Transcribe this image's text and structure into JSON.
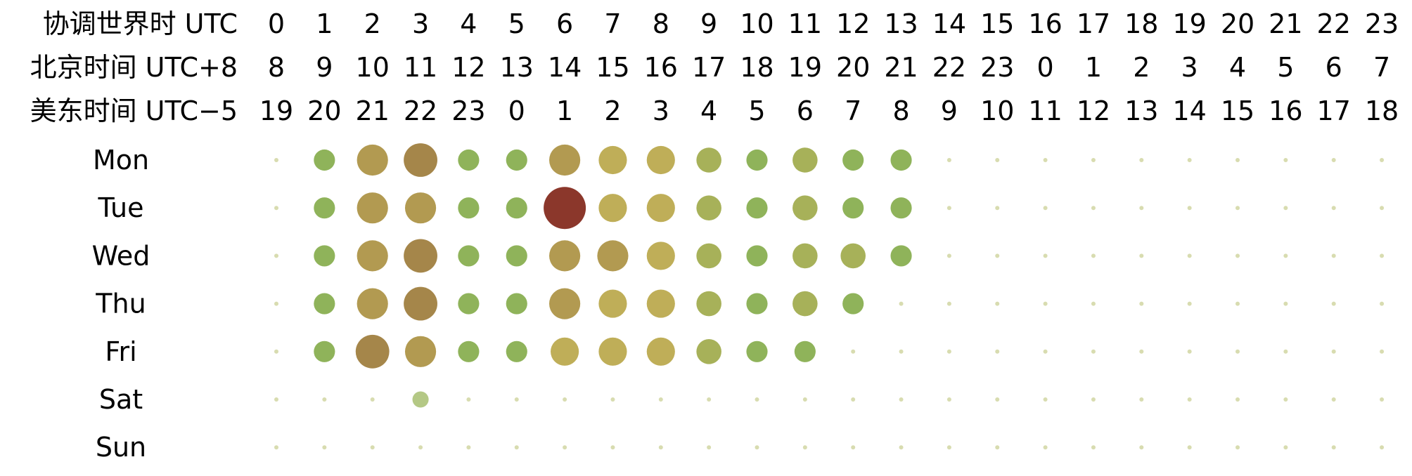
{
  "chart_data": {
    "type": "scatter",
    "subtype": "punchcard",
    "header_rows": [
      {
        "label": "协调世界时 UTC",
        "ticks": [
          "0",
          "1",
          "2",
          "3",
          "4",
          "5",
          "6",
          "7",
          "8",
          "9",
          "10",
          "11",
          "12",
          "13",
          "14",
          "15",
          "16",
          "17",
          "18",
          "19",
          "20",
          "21",
          "22",
          "23"
        ]
      },
      {
        "label": "北京时间 UTC+8",
        "ticks": [
          "8",
          "9",
          "10",
          "11",
          "12",
          "13",
          "14",
          "15",
          "16",
          "17",
          "18",
          "19",
          "20",
          "21",
          "22",
          "23",
          "0",
          "1",
          "2",
          "3",
          "4",
          "5",
          "6",
          "7"
        ]
      },
      {
        "label": "美东时间 UTC−5",
        "ticks": [
          "19",
          "20",
          "21",
          "22",
          "23",
          "0",
          "1",
          "2",
          "3",
          "4",
          "5",
          "6",
          "7",
          "8",
          "9",
          "10",
          "11",
          "12",
          "13",
          "14",
          "15",
          "16",
          "17",
          "18"
        ]
      }
    ],
    "days": [
      "Mon",
      "Tue",
      "Wed",
      "Thu",
      "Fri",
      "Sat",
      "Sun"
    ],
    "values": [
      [
        0,
        2,
        5,
        6,
        2,
        2,
        5,
        4,
        4,
        3,
        2,
        3,
        2,
        2,
        0,
        0,
        0,
        0,
        0,
        0,
        0,
        0,
        0,
        0
      ],
      [
        0,
        2,
        5,
        5,
        2,
        2,
        10,
        4,
        4,
        3,
        2,
        3,
        2,
        2,
        0,
        0,
        0,
        0,
        0,
        0,
        0,
        0,
        0,
        0
      ],
      [
        0,
        2,
        5,
        6,
        2,
        2,
        5,
        5,
        4,
        3,
        2,
        3,
        3,
        2,
        0,
        0,
        0,
        0,
        0,
        0,
        0,
        0,
        0,
        0
      ],
      [
        0,
        2,
        5,
        6,
        2,
        2,
        5,
        4,
        4,
        3,
        2,
        3,
        2,
        0,
        0,
        0,
        0,
        0,
        0,
        0,
        0,
        0,
        0,
        0
      ],
      [
        0,
        2,
        6,
        5,
        2,
        2,
        4,
        4,
        4,
        3,
        2,
        2,
        0,
        0,
        0,
        0,
        0,
        0,
        0,
        0,
        0,
        0,
        0,
        0
      ],
      [
        0,
        0,
        0,
        1,
        0,
        0,
        0,
        0,
        0,
        0,
        0,
        0,
        0,
        0,
        0,
        0,
        0,
        0,
        0,
        0,
        0,
        0,
        0,
        0
      ],
      [
        0,
        0,
        0,
        0,
        0,
        0,
        0,
        0,
        0,
        0,
        0,
        0,
        0,
        0,
        0,
        0,
        0,
        0,
        0,
        0,
        0,
        0,
        0,
        0
      ]
    ],
    "max_value": 10,
    "color_scale": [
      "#d8dcb0",
      "#8fb35a",
      "#bfae58",
      "#a5864a",
      "#98563a",
      "#8b372b"
    ],
    "grid": false,
    "legend": "none"
  }
}
